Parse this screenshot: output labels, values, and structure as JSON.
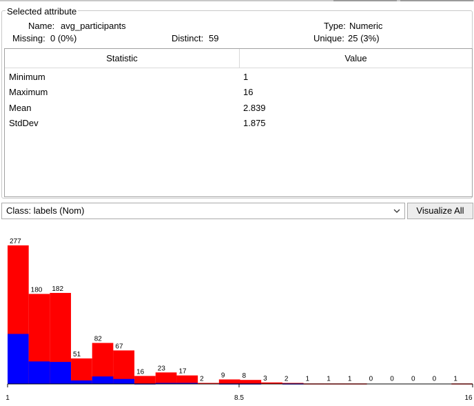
{
  "selected_attribute": {
    "legend": "Selected attribute",
    "name_label": "Name:",
    "name_value": "avg_participants",
    "missing_label": "Missing:",
    "missing_value": "0 (0%)",
    "distinct_label": "Distinct:",
    "distinct_value": "59",
    "type_label": "Type:",
    "type_value": "Numeric",
    "unique_label": "Unique:",
    "unique_value": "25 (3%)"
  },
  "statistics_table": {
    "headers": [
      "Statistic",
      "Value"
    ],
    "rows": [
      {
        "statistic": "Minimum",
        "value": "1"
      },
      {
        "statistic": "Maximum",
        "value": "16"
      },
      {
        "statistic": "Mean",
        "value": "2.839"
      },
      {
        "statistic": "StdDev",
        "value": "1.875"
      }
    ]
  },
  "class_selector": {
    "selected": "Class: labels (Nom)"
  },
  "visualize_button": {
    "label": "Visualize All"
  },
  "colors": {
    "class_red": "#ff0000",
    "class_blue": "#0000ff",
    "axis": "#000000"
  },
  "chart_data": {
    "type": "bar",
    "stacked": true,
    "x_ticks": [
      "1",
      "8.5",
      "16"
    ],
    "xlim": [
      1,
      16
    ],
    "bin_counts": [
      277,
      180,
      182,
      51,
      82,
      67,
      16,
      23,
      17,
      2,
      9,
      8,
      3,
      2,
      1,
      1,
      1,
      0,
      0,
      0,
      0,
      1
    ],
    "series": [
      {
        "color": "#0000ff",
        "values": [
          100,
          45,
          44,
          7,
          15,
          10,
          1,
          2,
          2,
          0,
          1,
          1,
          0,
          1,
          0,
          0,
          0,
          0,
          0,
          0,
          0,
          0
        ]
      },
      {
        "color": "#ff0000",
        "values": [
          177,
          135,
          138,
          44,
          67,
          57,
          15,
          21,
          15,
          2,
          8,
          7,
          3,
          1,
          1,
          1,
          1,
          0,
          0,
          0,
          0,
          1
        ]
      }
    ]
  }
}
